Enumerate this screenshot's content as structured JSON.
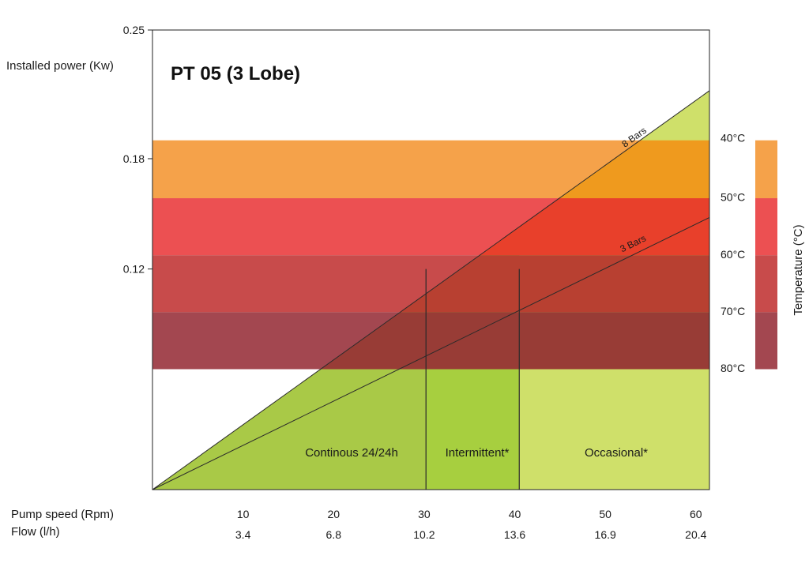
{
  "chart_data": {
    "type": "area",
    "title": "PT 05 (3 Lobe)",
    "ylabel": "Installed power (Kw)",
    "xlabel_speed": "Pump speed (Rpm)",
    "xlabel_flow": "Flow (l/h)",
    "ylim": [
      0,
      0.25
    ],
    "xlim": [
      0,
      61.5
    ],
    "y_ticks": [
      "0.25",
      "0.18",
      "0.12"
    ],
    "y_tick_values": [
      0.25,
      0.18,
      0.12
    ],
    "x_speed_ticks": [
      "10",
      "20",
      "30",
      "40",
      "50",
      "60"
    ],
    "x_speed_values": [
      10,
      20,
      30,
      40,
      50,
      60
    ],
    "x_flow_ticks": [
      "3.4",
      "6.8",
      "10.2",
      "13.6",
      "16.9",
      "20.4"
    ],
    "series": [
      {
        "name": "8 Bars",
        "x": [
          0,
          61.5
        ],
        "y": [
          0,
          0.217
        ]
      },
      {
        "name": "3 Bars",
        "x": [
          0,
          61.5
        ],
        "y": [
          0,
          0.148
        ]
      }
    ],
    "zones": [
      {
        "label": "Continous 24/24h",
        "x_start": 0,
        "x_end": 30.2,
        "color": "#a9c947"
      },
      {
        "label": "Intermittent*",
        "x_start": 30.2,
        "x_end": 40.5,
        "color": "#a7cf3f"
      },
      {
        "label": "Occasional*",
        "x_start": 40.5,
        "x_end": 61.5,
        "color": "#cfe06a"
      }
    ],
    "temperature_bands": [
      {
        "from": "40°C",
        "to": "50°C",
        "y_top": 0.19,
        "y_bottom": 0.1585,
        "color": "#f5a24a"
      },
      {
        "from": "50°C",
        "to": "60°C",
        "y_top": 0.1585,
        "y_bottom": 0.1275,
        "color": "#ec5052"
      },
      {
        "from": "60°C",
        "to": "70°C",
        "y_top": 0.1275,
        "y_bottom": 0.0965,
        "color": "#c84b4b"
      },
      {
        "from": "70°C",
        "to": "80°C",
        "y_top": 0.0965,
        "y_bottom": 0.0655,
        "color": "#a34750"
      }
    ],
    "temperature_labels": [
      "40°C",
      "50°C",
      "60°C",
      "70°C",
      "80°C"
    ],
    "temperature_axis_label": "Temperature (°C)"
  }
}
